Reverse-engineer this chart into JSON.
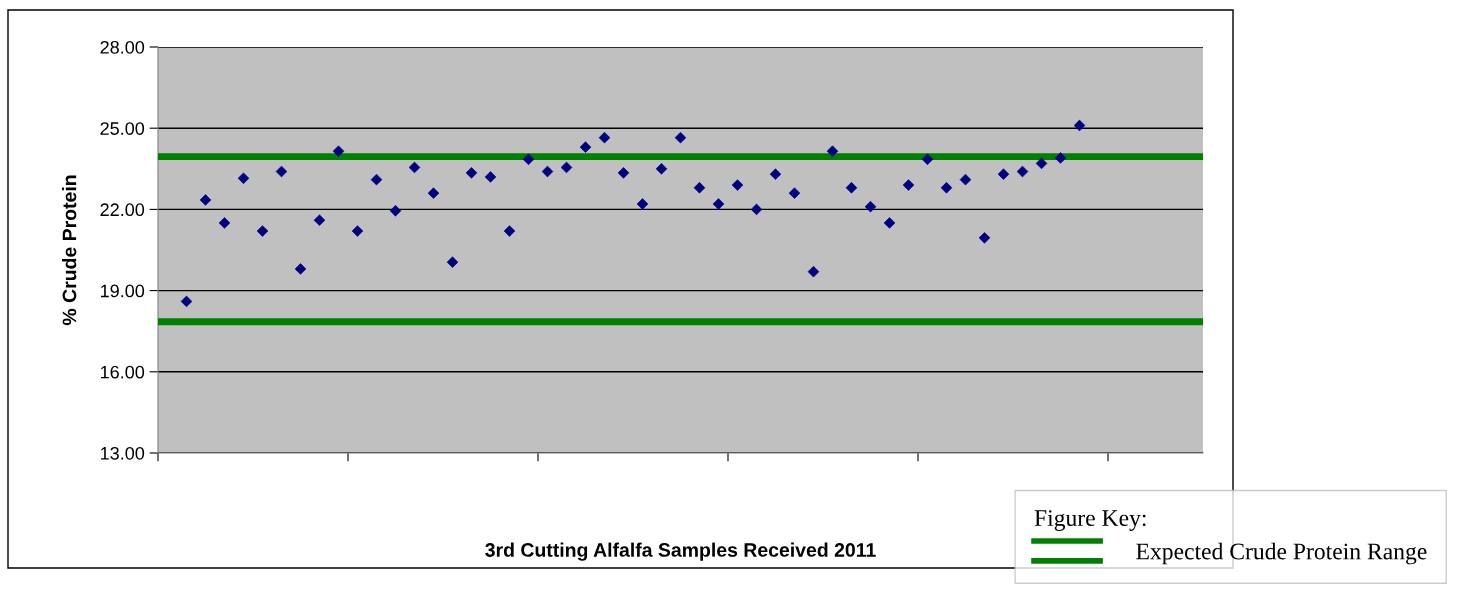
{
  "chart_data": {
    "type": "scatter",
    "xlabel": "3rd Cutting Alfalfa Samples Received 2011",
    "ylabel": "% Crude Protein",
    "legend_title": "Figure Key:",
    "legend": "bottom right",
    "marker": "diamond",
    "grid": "y",
    "categories": [
      null,
      null,
      null,
      null,
      null,
      null,
      null,
      null,
      null,
      null,
      null,
      null,
      null,
      null,
      null,
      null,
      null,
      null,
      null,
      null,
      null,
      null,
      null,
      null,
      null,
      null,
      null,
      null,
      null,
      null,
      null,
      null,
      null,
      null,
      null,
      null,
      null,
      null,
      null,
      null,
      null,
      null,
      null,
      null,
      null,
      null,
      null,
      null,
      null,
      null,
      null,
      null,
      null,
      null,
      null
    ],
    "series": [
      {
        "color": "#000080",
        "values": [
          null,
          18.6,
          22.35,
          21.5,
          23.15,
          21.2,
          23.4,
          19.8,
          21.6,
          24.15,
          21.2,
          23.1,
          21.95,
          23.55,
          22.6,
          20.05,
          23.35,
          23.2,
          21.2,
          23.85,
          23.4,
          23.55,
          24.3,
          24.65,
          23.35,
          22.2,
          23.5,
          24.65,
          22.8,
          22.2,
          22.9,
          22.0,
          23.3,
          22.6,
          19.7,
          24.15,
          22.8,
          22.1,
          21.5,
          22.9,
          23.85,
          22.8,
          23.1,
          20.95,
          23.3,
          23.4,
          23.7,
          23.9,
          25.1,
          null,
          null,
          null,
          null,
          null,
          null
        ]
      }
    ],
    "ref_lines": [
      {
        "axis": "y",
        "value": 23.95,
        "label": "Expected Crude Protein Range",
        "color": "#008000"
      },
      {
        "axis": "y",
        "value": 17.85,
        "label": null,
        "color": "#008000"
      }
    ],
    "ylim": [
      13,
      28
    ],
    "yticks": [
      {
        "value": 13,
        "label": "13.00"
      },
      {
        "value": 16,
        "label": "16.00"
      },
      {
        "value": 19,
        "label": "19.00"
      },
      {
        "value": 22,
        "label": "22.00"
      },
      {
        "value": 25,
        "label": "25.00"
      },
      {
        "value": 28,
        "label": "28.00"
      }
    ]
  }
}
